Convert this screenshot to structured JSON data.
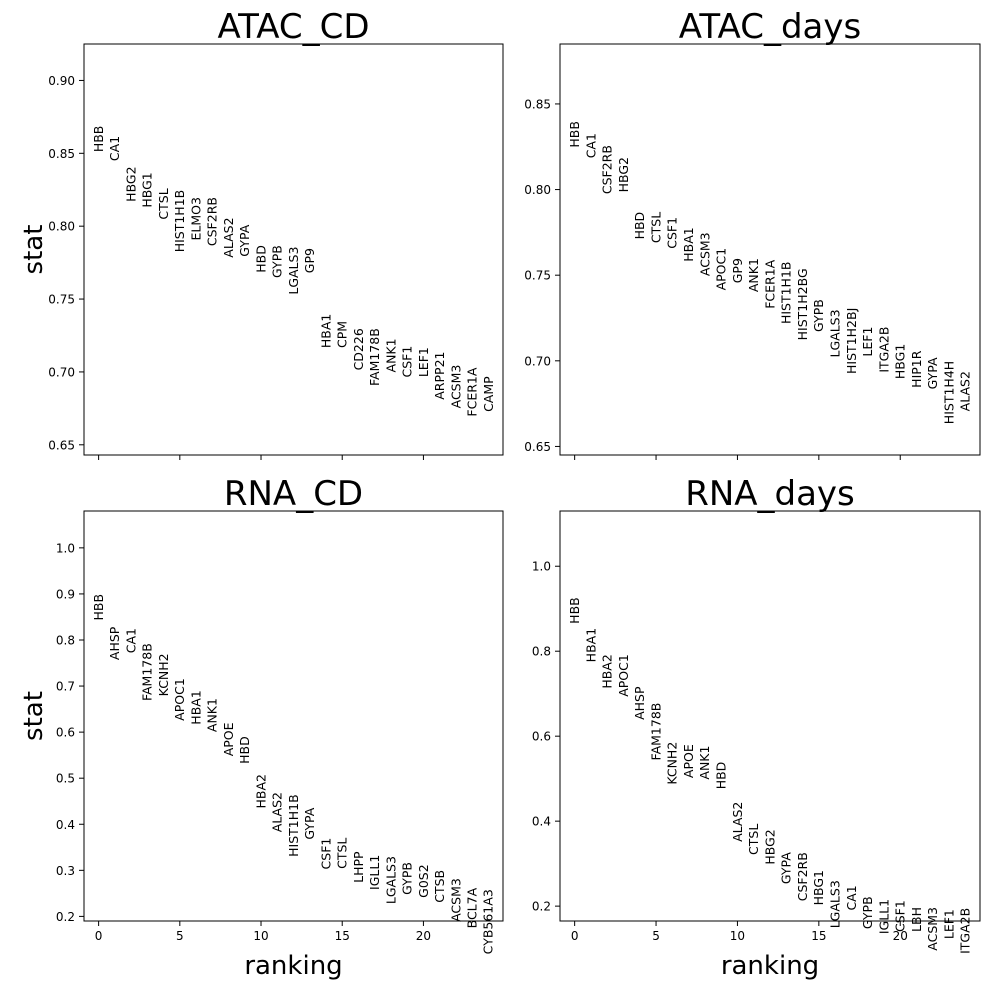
{
  "chart_data": [
    {
      "type": "scatter",
      "title": "ATAC_CD",
      "xlabel": "",
      "ylabel": "stat",
      "xlim": [
        -0.9,
        24.9
      ],
      "ylim": [
        0.643,
        0.925
      ],
      "xticks": [
        0,
        5,
        10,
        15,
        20
      ],
      "show_xtick_labels": false,
      "yticks": [
        0.65,
        0.7,
        0.75,
        0.8,
        0.85,
        0.9
      ],
      "ytick_labels": [
        "0.65",
        "0.70",
        "0.75",
        "0.80",
        "0.85",
        "0.90"
      ],
      "points": [
        {
          "x": 0,
          "y": 0.869,
          "label": "HBB"
        },
        {
          "x": 1,
          "y": 0.862,
          "label": "CA1"
        },
        {
          "x": 2,
          "y": 0.841,
          "label": "HBG2"
        },
        {
          "x": 3,
          "y": 0.837,
          "label": "HBG1"
        },
        {
          "x": 4,
          "y": 0.826,
          "label": "CTSL"
        },
        {
          "x": 5,
          "y": 0.825,
          "label": "HIST1H1B"
        },
        {
          "x": 6,
          "y": 0.82,
          "label": "ELMO3"
        },
        {
          "x": 7,
          "y": 0.82,
          "label": "CSF2RB"
        },
        {
          "x": 8,
          "y": 0.806,
          "label": "ALAS2"
        },
        {
          "x": 9,
          "y": 0.801,
          "label": "GYPA"
        },
        {
          "x": 10,
          "y": 0.787,
          "label": "HBD"
        },
        {
          "x": 11,
          "y": 0.787,
          "label": "GYPB"
        },
        {
          "x": 12,
          "y": 0.786,
          "label": "LGALS3"
        },
        {
          "x": 13,
          "y": 0.785,
          "label": "GP9"
        },
        {
          "x": 14,
          "y": 0.74,
          "label": "HBA1"
        },
        {
          "x": 15,
          "y": 0.735,
          "label": "CPM"
        },
        {
          "x": 16,
          "y": 0.73,
          "label": "CD226"
        },
        {
          "x": 17,
          "y": 0.73,
          "label": "FAM178B"
        },
        {
          "x": 18,
          "y": 0.723,
          "label": "ANK1"
        },
        {
          "x": 19,
          "y": 0.718,
          "label": "CSF1"
        },
        {
          "x": 20,
          "y": 0.717,
          "label": "LEF1"
        },
        {
          "x": 21,
          "y": 0.714,
          "label": "ARPP21"
        },
        {
          "x": 22,
          "y": 0.705,
          "label": "ACSM3"
        },
        {
          "x": 23,
          "y": 0.703,
          "label": "FCER1A"
        },
        {
          "x": 24,
          "y": 0.697,
          "label": "CAMP"
        }
      ]
    },
    {
      "type": "scatter",
      "title": "ATAC_days",
      "xlabel": "",
      "ylabel": "",
      "xlim": [
        -0.9,
        24.9
      ],
      "ylim": [
        0.645,
        0.885
      ],
      "xticks": [
        0,
        5,
        10,
        15,
        20
      ],
      "show_xtick_labels": false,
      "yticks": [
        0.65,
        0.7,
        0.75,
        0.8,
        0.85
      ],
      "ytick_labels": [
        "0.65",
        "0.70",
        "0.75",
        "0.80",
        "0.85"
      ],
      "points": [
        {
          "x": 0,
          "y": 0.84,
          "label": "HBB"
        },
        {
          "x": 1,
          "y": 0.833,
          "label": "CA1"
        },
        {
          "x": 2,
          "y": 0.826,
          "label": "CSF2RB"
        },
        {
          "x": 3,
          "y": 0.819,
          "label": "HBG2"
        },
        {
          "x": 4,
          "y": 0.787,
          "label": "HBD"
        },
        {
          "x": 5,
          "y": 0.787,
          "label": "CTSL"
        },
        {
          "x": 6,
          "y": 0.784,
          "label": "CSF1"
        },
        {
          "x": 7,
          "y": 0.778,
          "label": "HBA1"
        },
        {
          "x": 8,
          "y": 0.775,
          "label": "ACSM3"
        },
        {
          "x": 9,
          "y": 0.766,
          "label": "APOC1"
        },
        {
          "x": 10,
          "y": 0.76,
          "label": "GP9"
        },
        {
          "x": 11,
          "y": 0.76,
          "label": "ANK1"
        },
        {
          "x": 12,
          "y": 0.759,
          "label": "FCER1A"
        },
        {
          "x": 13,
          "y": 0.758,
          "label": "HIST1H1B"
        },
        {
          "x": 14,
          "y": 0.754,
          "label": "HIST1H2BG"
        },
        {
          "x": 15,
          "y": 0.736,
          "label": "GYPB"
        },
        {
          "x": 16,
          "y": 0.73,
          "label": "LGALS3"
        },
        {
          "x": 17,
          "y": 0.731,
          "label": "HIST1H2BJ"
        },
        {
          "x": 18,
          "y": 0.72,
          "label": "LEF1"
        },
        {
          "x": 19,
          "y": 0.72,
          "label": "ITGA2B"
        },
        {
          "x": 20,
          "y": 0.71,
          "label": "HBG1"
        },
        {
          "x": 21,
          "y": 0.706,
          "label": "HIP1R"
        },
        {
          "x": 22,
          "y": 0.702,
          "label": "GYPA"
        },
        {
          "x": 23,
          "y": 0.7,
          "label": "HIST1H4H"
        },
        {
          "x": 24,
          "y": 0.694,
          "label": "ALAS2"
        }
      ]
    },
    {
      "type": "scatter",
      "title": "RNA_CD",
      "xlabel": "ranking",
      "ylabel": "stat",
      "xlim": [
        -0.9,
        24.9
      ],
      "ylim": [
        0.19,
        1.08
      ],
      "xticks": [
        0,
        5,
        10,
        15,
        20
      ],
      "show_xtick_labels": true,
      "xtick_labels": [
        "0",
        "5",
        "10",
        "15",
        "20"
      ],
      "yticks": [
        0.2,
        0.3,
        0.4,
        0.5,
        0.6,
        0.7,
        0.8,
        0.9,
        1.0
      ],
      "ytick_labels": [
        "0.2",
        "0.3",
        "0.4",
        "0.5",
        "0.6",
        "0.7",
        "0.8",
        "0.9",
        "1.0"
      ],
      "points": [
        {
          "x": 0,
          "y": 0.9,
          "label": "HBB"
        },
        {
          "x": 1,
          "y": 0.829,
          "label": "AHSP"
        },
        {
          "x": 2,
          "y": 0.826,
          "label": "CA1"
        },
        {
          "x": 3,
          "y": 0.793,
          "label": "FAM178B"
        },
        {
          "x": 4,
          "y": 0.771,
          "label": "KCNH2"
        },
        {
          "x": 5,
          "y": 0.717,
          "label": "APOC1"
        },
        {
          "x": 6,
          "y": 0.691,
          "label": "HBA1"
        },
        {
          "x": 7,
          "y": 0.674,
          "label": "ANK1"
        },
        {
          "x": 8,
          "y": 0.621,
          "label": "APOE"
        },
        {
          "x": 9,
          "y": 0.591,
          "label": "HBD"
        },
        {
          "x": 10,
          "y": 0.509,
          "label": "HBA2"
        },
        {
          "x": 11,
          "y": 0.47,
          "label": "ALAS2"
        },
        {
          "x": 12,
          "y": 0.465,
          "label": "HIST1H1B"
        },
        {
          "x": 13,
          "y": 0.436,
          "label": "GYPA"
        },
        {
          "x": 14,
          "y": 0.371,
          "label": "CSF1"
        },
        {
          "x": 15,
          "y": 0.371,
          "label": "CTSL"
        },
        {
          "x": 16,
          "y": 0.341,
          "label": "LHPP"
        },
        {
          "x": 17,
          "y": 0.334,
          "label": "IGLL1"
        },
        {
          "x": 18,
          "y": 0.331,
          "label": "LGALS3"
        },
        {
          "x": 19,
          "y": 0.318,
          "label": "GYPB"
        },
        {
          "x": 20,
          "y": 0.313,
          "label": "G0S2"
        },
        {
          "x": 21,
          "y": 0.301,
          "label": "CTSB"
        },
        {
          "x": 22,
          "y": 0.283,
          "label": "ACSM3"
        },
        {
          "x": 23,
          "y": 0.262,
          "label": "BCL7A"
        },
        {
          "x": 24,
          "y": 0.259,
          "label": "CYB561A3"
        }
      ]
    },
    {
      "type": "scatter",
      "title": "RNA_days",
      "xlabel": "ranking",
      "ylabel": "",
      "xlim": [
        -0.9,
        24.9
      ],
      "ylim": [
        0.165,
        1.13
      ],
      "xticks": [
        0,
        5,
        10,
        15,
        20
      ],
      "show_xtick_labels": true,
      "xtick_labels": [
        "0",
        "5",
        "10",
        "15",
        "20"
      ],
      "yticks": [
        0.2,
        0.4,
        0.6,
        0.8,
        1.0
      ],
      "ytick_labels": [
        "0.2",
        "0.4",
        "0.6",
        "0.8",
        "1.0"
      ],
      "points": [
        {
          "x": 0,
          "y": 0.927,
          "label": "HBB"
        },
        {
          "x": 1,
          "y": 0.855,
          "label": "HBA1"
        },
        {
          "x": 2,
          "y": 0.793,
          "label": "HBA2"
        },
        {
          "x": 3,
          "y": 0.793,
          "label": "APOC1"
        },
        {
          "x": 4,
          "y": 0.717,
          "label": "AHSP"
        },
        {
          "x": 5,
          "y": 0.679,
          "label": "FAM178B"
        },
        {
          "x": 6,
          "y": 0.587,
          "label": "KCNH2"
        },
        {
          "x": 7,
          "y": 0.581,
          "label": "APOE"
        },
        {
          "x": 8,
          "y": 0.578,
          "label": "ANK1"
        },
        {
          "x": 9,
          "y": 0.54,
          "label": "HBD"
        },
        {
          "x": 10,
          "y": 0.446,
          "label": "ALAS2"
        },
        {
          "x": 11,
          "y": 0.394,
          "label": "CTSL"
        },
        {
          "x": 12,
          "y": 0.381,
          "label": "HBG2"
        },
        {
          "x": 13,
          "y": 0.327,
          "label": "GYPA"
        },
        {
          "x": 14,
          "y": 0.327,
          "label": "CSF2RB"
        },
        {
          "x": 15,
          "y": 0.285,
          "label": "HBG1"
        },
        {
          "x": 16,
          "y": 0.261,
          "label": "LGALS3"
        },
        {
          "x": 17,
          "y": 0.249,
          "label": "CA1"
        },
        {
          "x": 18,
          "y": 0.223,
          "label": "GYPB"
        },
        {
          "x": 19,
          "y": 0.217,
          "label": "IGLL1"
        },
        {
          "x": 20,
          "y": 0.214,
          "label": "CSF1"
        },
        {
          "x": 21,
          "y": 0.198,
          "label": "LBH"
        },
        {
          "x": 22,
          "y": 0.198,
          "label": "ACSM3"
        },
        {
          "x": 23,
          "y": 0.193,
          "label": "LEF1"
        },
        {
          "x": 24,
          "y": 0.196,
          "label": "ITGA2B"
        }
      ]
    }
  ]
}
